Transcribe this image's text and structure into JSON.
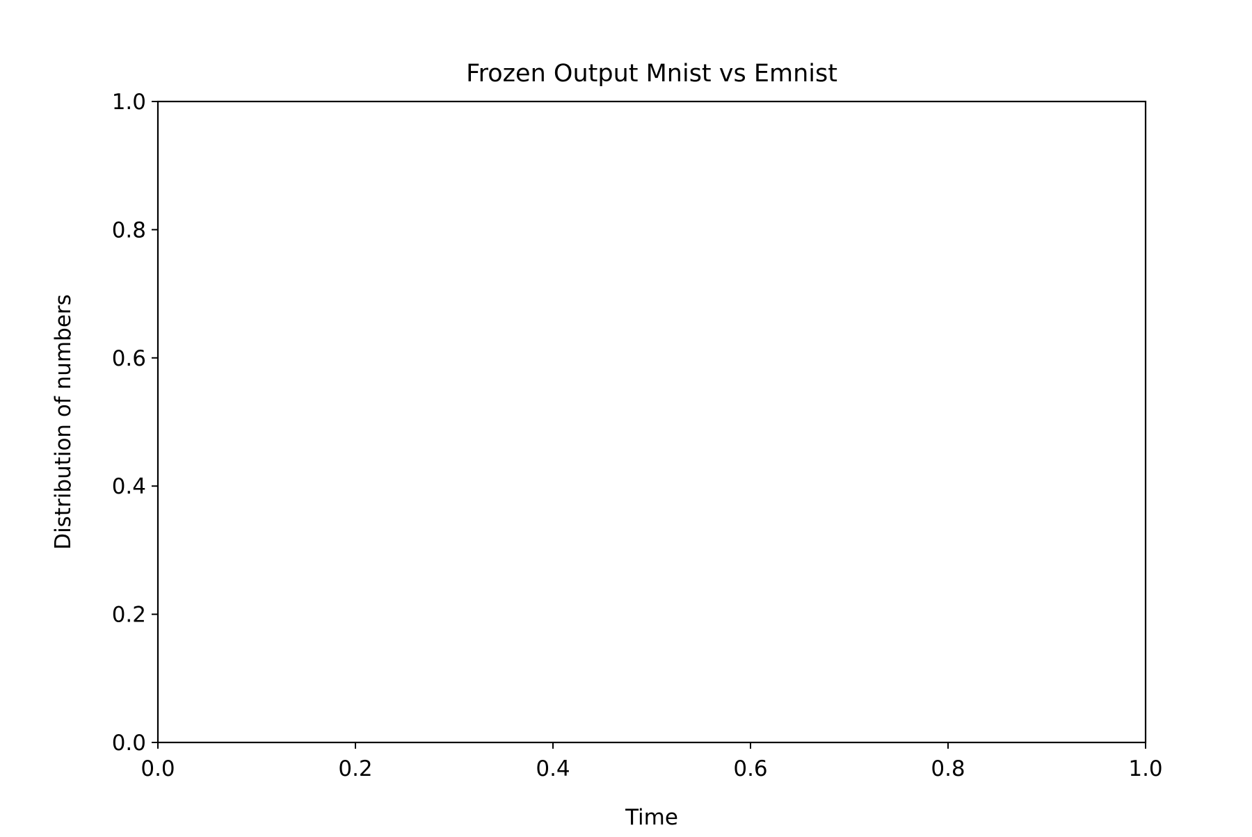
{
  "chart_data": {
    "type": "line",
    "title": "Frozen Output Mnist vs Emnist",
    "xlabel": "Time",
    "ylabel": "Distribution of numbers",
    "xlim": [
      0.0,
      1.0
    ],
    "ylim": [
      0.0,
      1.0
    ],
    "xticks": [
      "0.0",
      "0.2",
      "0.4",
      "0.6",
      "0.8",
      "1.0"
    ],
    "yticks": [
      "0.0",
      "0.2",
      "0.4",
      "0.6",
      "0.8",
      "1.0"
    ],
    "grid": false,
    "legend": null,
    "series": []
  }
}
